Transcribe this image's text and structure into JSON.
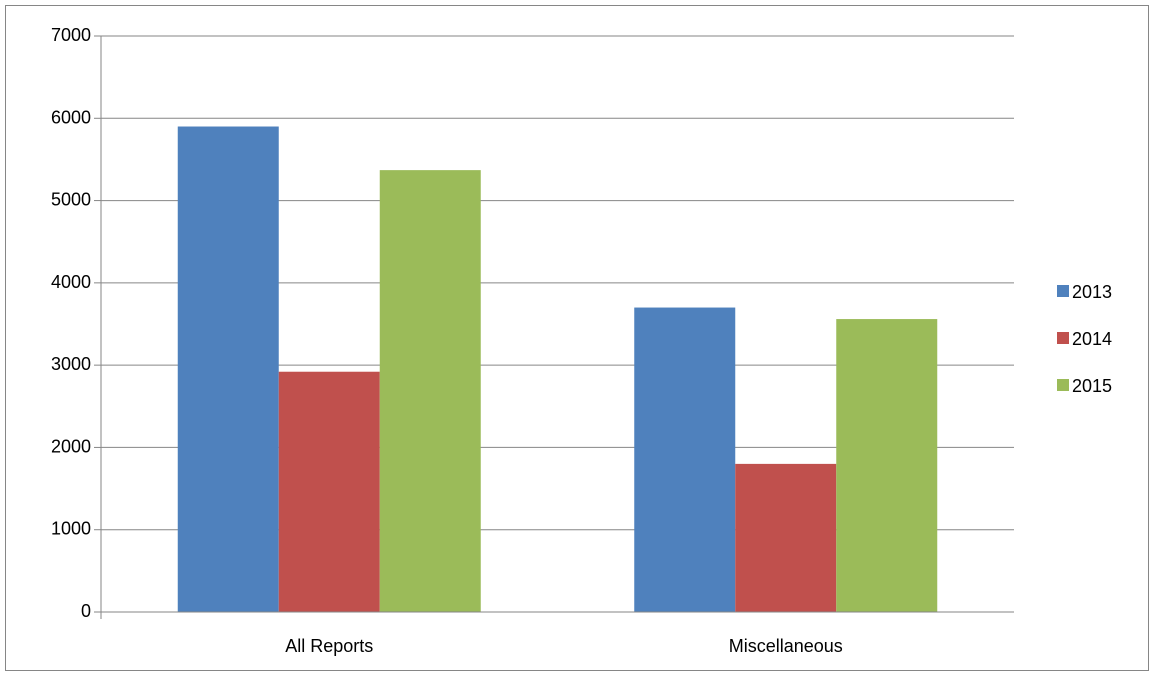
{
  "chart_data": {
    "type": "bar",
    "categories": [
      "All Reports",
      "Miscellaneous"
    ],
    "series": [
      {
        "name": "2013",
        "values": [
          5900,
          3700
        ],
        "color": "#4F81BD"
      },
      {
        "name": "2014",
        "values": [
          2920,
          1800
        ],
        "color": "#C0504D"
      },
      {
        "name": "2015",
        "values": [
          5370,
          3560
        ],
        "color": "#9BBB59"
      }
    ],
    "title": "",
    "xlabel": "",
    "ylabel": "",
    "ylim": [
      0,
      7000
    ],
    "yticks": [
      0,
      1000,
      2000,
      3000,
      4000,
      5000,
      6000,
      7000
    ],
    "grid": true,
    "legend_position": "right"
  }
}
